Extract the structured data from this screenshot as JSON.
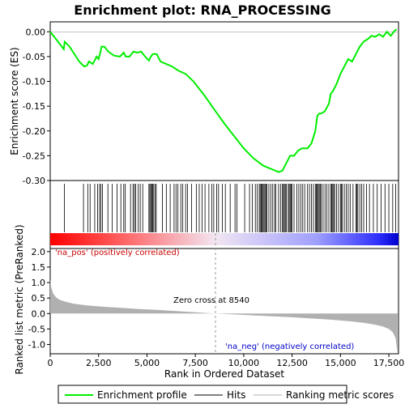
{
  "chart_data": {
    "type": "line",
    "title": "Enrichment plot: RNA_PROCESSING",
    "top_panel": {
      "ylabel": "Enrichment score (ES)",
      "ylim": [
        -0.3,
        0.02
      ],
      "yticks": [
        "0.00",
        "-0.05",
        "-0.10",
        "-0.15",
        "-0.20",
        "-0.25",
        "-0.30"
      ],
      "ytick_values": [
        0.0,
        -0.05,
        -0.1,
        -0.15,
        -0.2,
        -0.25,
        -0.3
      ],
      "line_color": "#00ee00",
      "series": [
        {
          "name": "Enrichment profile",
          "x": [
            0,
            300,
            700,
            750,
            1000,
            1500,
            1750,
            1900,
            2000,
            2200,
            2400,
            2500,
            2600,
            2650,
            2800,
            3000,
            3300,
            3600,
            3800,
            3900,
            4100,
            4300,
            4500,
            4700,
            4900,
            5100,
            5200,
            5300,
            5500,
            5700,
            6000,
            6300,
            6600,
            7000,
            7400,
            8000,
            8540,
            9000,
            9500,
            10000,
            10500,
            11000,
            11500,
            11800,
            12000,
            12200,
            12400,
            12600,
            12800,
            13000,
            13300,
            13500,
            13700,
            13800,
            13900,
            14000,
            14200,
            14400,
            14500,
            14600,
            14800,
            15000,
            15200,
            15400,
            15600,
            15800,
            16000,
            16200,
            16400,
            16600,
            16800,
            17000,
            17200,
            17400,
            17600,
            17800,
            17900
          ],
          "y": [
            0.0,
            -0.015,
            -0.035,
            -0.02,
            -0.03,
            -0.06,
            -0.07,
            -0.068,
            -0.06,
            -0.065,
            -0.05,
            -0.055,
            -0.04,
            -0.03,
            -0.03,
            -0.04,
            -0.048,
            -0.05,
            -0.042,
            -0.05,
            -0.05,
            -0.04,
            -0.042,
            -0.04,
            -0.05,
            -0.058,
            -0.05,
            -0.045,
            -0.045,
            -0.06,
            -0.065,
            -0.07,
            -0.078,
            -0.085,
            -0.1,
            -0.13,
            -0.16,
            -0.185,
            -0.21,
            -0.235,
            -0.255,
            -0.27,
            -0.278,
            -0.283,
            -0.28,
            -0.265,
            -0.25,
            -0.25,
            -0.24,
            -0.235,
            -0.235,
            -0.225,
            -0.2,
            -0.17,
            -0.165,
            -0.165,
            -0.16,
            -0.145,
            -0.125,
            -0.12,
            -0.105,
            -0.085,
            -0.07,
            -0.055,
            -0.06,
            -0.045,
            -0.03,
            -0.02,
            -0.015,
            -0.008,
            -0.01,
            -0.005,
            -0.01,
            0.0,
            -0.008,
            0.002,
            0.005
          ]
        }
      ]
    },
    "hits_panel": {
      "hit_positions": [
        730,
        1720,
        1940,
        2060,
        2300,
        2450,
        2550,
        2620,
        2700,
        2980,
        3200,
        3450,
        3650,
        3800,
        3880,
        4150,
        4280,
        4350,
        4420,
        4550,
        4650,
        4780,
        5100,
        5150,
        5200,
        5250,
        5300,
        5350,
        5420,
        5480,
        5800,
        6000,
        6200,
        6400,
        6500,
        6600,
        6750,
        6850,
        7000,
        7100,
        7300,
        7550,
        7700,
        7850,
        8000,
        8200,
        8350,
        8450,
        8600,
        8700,
        8900,
        9050,
        9300,
        9550,
        9650,
        10050,
        10300,
        10450,
        10600,
        10700,
        10800,
        10850,
        10900,
        10950,
        11000,
        11050,
        11100,
        11150,
        11200,
        11300,
        11400,
        11500,
        11600,
        11650,
        11800,
        11900,
        12000,
        12050,
        12100,
        12150,
        12200,
        12300,
        12350,
        12400,
        12450,
        12500,
        12600,
        12750,
        12850,
        12950,
        13050,
        13150,
        13300,
        13400,
        13500,
        13600,
        13700,
        13750,
        13800,
        13850,
        13900,
        13950,
        14000,
        14100,
        14200,
        14300,
        14400,
        14500,
        14550,
        14600,
        14650,
        14700,
        14800,
        14900,
        15000,
        15050,
        15100,
        15200,
        15300,
        15400,
        15500,
        15650,
        15800,
        15850,
        15900,
        16000,
        16100,
        16200,
        16350,
        16500,
        16700,
        16900,
        17100,
        17300,
        17500,
        17700,
        17850
      ]
    },
    "ranked_metric_panel": {
      "ylabel": "Ranked list metric (PreRanked)",
      "xlabel": "Rank in Ordered Dataset",
      "ylim": [
        -1.3,
        2.1
      ],
      "yticks": [
        "2.0",
        "1.5",
        "1.0",
        "0.5",
        "0.0",
        "-0.5",
        "-1.0"
      ],
      "ytick_values": [
        2.0,
        1.5,
        1.0,
        0.5,
        0.0,
        -0.5,
        -1.0
      ],
      "xlim": [
        0,
        18000
      ],
      "xticks": [
        "0",
        "2,500",
        "5,000",
        "7,500",
        "10,000",
        "12,500",
        "15,000",
        "17,500"
      ],
      "xtick_values": [
        0,
        2500,
        5000,
        7500,
        10000,
        12500,
        15000,
        17500
      ],
      "metric_curve": {
        "x": [
          0,
          50,
          150,
          300,
          500,
          800,
          1200,
          1800,
          2500,
          3500,
          4500,
          5500,
          6500,
          7500,
          8540,
          9500,
          10500,
          11500,
          12500,
          13500,
          14500,
          15500,
          16200,
          16800,
          17200,
          17500,
          17700,
          17850,
          17950
        ],
        "y": [
          1.1,
          0.85,
          0.65,
          0.52,
          0.44,
          0.38,
          0.32,
          0.27,
          0.23,
          0.19,
          0.15,
          0.12,
          0.08,
          0.04,
          0.0,
          -0.03,
          -0.06,
          -0.09,
          -0.12,
          -0.16,
          -0.2,
          -0.25,
          -0.3,
          -0.36,
          -0.42,
          -0.5,
          -0.6,
          -0.8,
          -1.3
        ]
      },
      "zero_cross_label": "Zero cross at 8540",
      "zero_cross": 8540,
      "pos_label": "'na_pos' (positively correlated)",
      "neg_label": "'na_neg' (negatively correlated)"
    },
    "legend": [
      {
        "label": "Enrichment profile",
        "color": "#00ee00"
      },
      {
        "label": "Hits",
        "color": "#000000"
      },
      {
        "label": "Ranking metric scores",
        "color": "#b0b0b0"
      }
    ],
    "colors": {
      "pos_label": "#cc0000",
      "neg_label": "#0000cc",
      "metric_fill": "#b0b0b0"
    }
  }
}
